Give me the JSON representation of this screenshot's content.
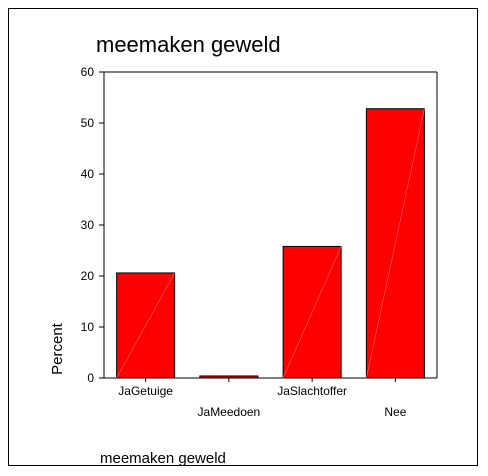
{
  "chart_data": {
    "type": "bar",
    "title": "meemaken geweld",
    "xlabel": "meemaken geweld",
    "ylabel": "Percent",
    "categories": [
      "JaGetuige",
      "JaMeedoen",
      "JaSlachtoffer",
      "Nee"
    ],
    "values": [
      20.6,
      0.4,
      25.8,
      52.8
    ],
    "ylim": [
      0,
      60
    ],
    "yticks": [
      0,
      10,
      20,
      30,
      40,
      50,
      60
    ],
    "grid": false,
    "legend": "none",
    "bar_color": "#ff0000",
    "bar_outline": "#000000"
  }
}
